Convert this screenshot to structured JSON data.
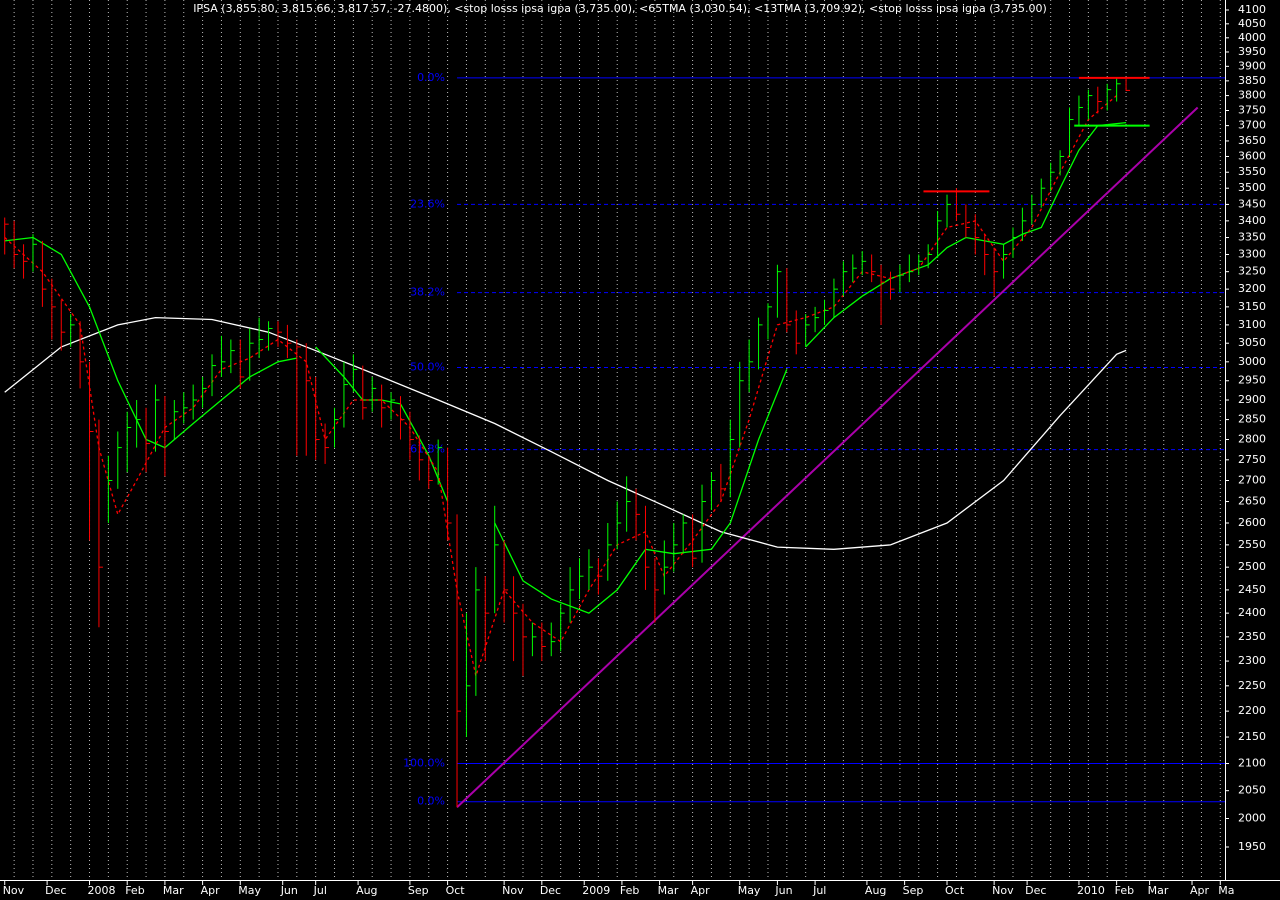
{
  "chart_data": {
    "type": "ohlc",
    "title": "IPSA (3,855.80, 3,815.66, 3,817.57, -27.4800), <stop losss ipsa igpa (3,735.00), <65TMA (3,030.54), <13TMA (3,709.92), <stop losss ipsa igpa (3,735.00)",
    "log_scale": true,
    "ylim": [
      1950,
      4100
    ],
    "yticks": [
      1950,
      2000,
      2050,
      2100,
      2150,
      2200,
      2250,
      2300,
      2350,
      2400,
      2450,
      2500,
      2550,
      2600,
      2650,
      2700,
      2750,
      2800,
      2850,
      2900,
      2950,
      3000,
      3050,
      3100,
      3150,
      3200,
      3250,
      3300,
      3350,
      3400,
      3450,
      3500,
      3550,
      3600,
      3650,
      3700,
      3750,
      3800,
      3850,
      3900,
      3950,
      4000,
      4050,
      4100
    ],
    "xlim": [
      -0.5,
      129.5
    ],
    "xticks": [
      {
        "value": 0,
        "label": "Nov"
      },
      {
        "value": 4.5,
        "label": "Dec"
      },
      {
        "value": 9,
        "label": "2008"
      },
      {
        "value": 13,
        "label": "Feb"
      },
      {
        "value": 17,
        "label": "Mar"
      },
      {
        "value": 21,
        "label": "Apr"
      },
      {
        "value": 25,
        "label": "May"
      },
      {
        "value": 29.5,
        "label": "Jun"
      },
      {
        "value": 33,
        "label": "Jul"
      },
      {
        "value": 37.5,
        "label": "Aug"
      },
      {
        "value": 43,
        "label": "Sep"
      },
      {
        "value": 47,
        "label": "Oct"
      },
      {
        "value": 53,
        "label": "Nov"
      },
      {
        "value": 57,
        "label": "Dec"
      },
      {
        "value": 61.5,
        "label": "2009"
      },
      {
        "value": 65.5,
        "label": "Feb"
      },
      {
        "value": 69.5,
        "label": "Mar"
      },
      {
        "value": 73,
        "label": "Apr"
      },
      {
        "value": 78,
        "label": "May"
      },
      {
        "value": 82,
        "label": "Jun"
      },
      {
        "value": 86,
        "label": "Jul"
      },
      {
        "value": 91.5,
        "label": "Aug"
      },
      {
        "value": 95.5,
        "label": "Sep"
      },
      {
        "value": 100,
        "label": "Oct"
      },
      {
        "value": 105,
        "label": "Nov"
      },
      {
        "value": 108.5,
        "label": "Dec"
      },
      {
        "value": 114,
        "label": "2010"
      },
      {
        "value": 118,
        "label": "Feb"
      },
      {
        "value": 121.5,
        "label": "Mar"
      },
      {
        "value": 126,
        "label": "Apr"
      },
      {
        "value": 129,
        "label": "Ma"
      }
    ],
    "up_color": "#00ff00",
    "down_color": "#ff0000",
    "bars": {
      "close": [
        3390,
        3300,
        3280,
        3330,
        3200,
        3150,
        3080,
        3100,
        3000,
        2820,
        2500,
        2700,
        2780,
        2830,
        2850,
        2790,
        2900,
        2820,
        2870,
        2880,
        2900,
        2930,
        2990,
        3000,
        3030,
        2960,
        3050,
        3060,
        3090,
        3080,
        3050,
        3040,
        2950,
        2800,
        2780,
        2850,
        2940,
        2980,
        2880,
        2930,
        2880,
        2900,
        2850,
        2800,
        2750,
        2700,
        2780,
        2600,
        2200,
        2250,
        2450,
        2400,
        2550,
        2450,
        2400,
        2350,
        2350,
        2330,
        2340,
        2400,
        2450,
        2480,
        2500,
        2480,
        2550,
        2600,
        2650,
        2620,
        2500,
        2450,
        2500,
        2550,
        2600,
        2520,
        2650,
        2700,
        2680,
        2800,
        2950,
        3000,
        3100,
        3150,
        3250,
        3100,
        3050,
        3100,
        3120,
        3140,
        3200,
        3250,
        3260,
        3280,
        3250,
        3220,
        3200,
        3240,
        3250,
        3280,
        3300,
        3400,
        3450,
        3420,
        3380,
        3350,
        3300,
        3250,
        3300,
        3350,
        3400,
        3450,
        3500,
        3550,
        3600,
        3720,
        3760,
        3800,
        3780,
        3820,
        3840,
        3817.57
      ],
      "high": [
        3410,
        3400,
        3330,
        3360,
        3340,
        3230,
        3170,
        3130,
        3110,
        3000,
        2850,
        2760,
        2820,
        2870,
        2900,
        2880,
        2940,
        2910,
        2900,
        2920,
        2940,
        2960,
        3020,
        3070,
        3060,
        3060,
        3090,
        3120,
        3110,
        3110,
        3100,
        3060,
        3050,
        2960,
        2840,
        2880,
        3000,
        3020,
        2990,
        2960,
        2940,
        2920,
        2910,
        2870,
        2810,
        2760,
        2800,
        2780,
        2620,
        2400,
        2500,
        2480,
        2640,
        2560,
        2480,
        2420,
        2380,
        2380,
        2380,
        2420,
        2500,
        2520,
        2540,
        2520,
        2600,
        2650,
        2710,
        2680,
        2640,
        2520,
        2560,
        2600,
        2620,
        2620,
        2690,
        2720,
        2740,
        2850,
        3000,
        3060,
        3120,
        3160,
        3270,
        3260,
        3140,
        3130,
        3150,
        3170,
        3230,
        3280,
        3300,
        3310,
        3300,
        3270,
        3250,
        3270,
        3300,
        3300,
        3330,
        3430,
        3480,
        3500,
        3450,
        3420,
        3360,
        3320,
        3330,
        3380,
        3440,
        3480,
        3530,
        3580,
        3620,
        3760,
        3800,
        3820,
        3830,
        3840,
        3860,
        3855.8
      ],
      "low": [
        3300,
        3260,
        3230,
        3250,
        3150,
        3060,
        3030,
        3040,
        2930,
        2560,
        2370,
        2600,
        2680,
        2720,
        2780,
        2720,
        2770,
        2710,
        2800,
        2840,
        2850,
        2880,
        2910,
        2960,
        2970,
        2930,
        2950,
        3010,
        3030,
        3040,
        3010,
        2760,
        2760,
        2750,
        2740,
        2780,
        2830,
        2920,
        2850,
        2870,
        2830,
        2850,
        2800,
        2750,
        2700,
        2680,
        2690,
        2560,
        2020,
        2150,
        2230,
        2300,
        2400,
        2380,
        2300,
        2270,
        2310,
        2300,
        2310,
        2320,
        2380,
        2430,
        2450,
        2440,
        2470,
        2540,
        2580,
        2560,
        2450,
        2380,
        2440,
        2490,
        2530,
        2500,
        2510,
        2630,
        2650,
        2660,
        2780,
        2920,
        2980,
        3060,
        3120,
        3080,
        3020,
        3040,
        3080,
        3100,
        3120,
        3180,
        3220,
        3240,
        3220,
        3100,
        3170,
        3190,
        3220,
        3240,
        3260,
        3290,
        3380,
        3400,
        3350,
        3300,
        3240,
        3180,
        3230,
        3290,
        3340,
        3390,
        3440,
        3490,
        3540,
        3600,
        3700,
        3720,
        3740,
        3750,
        3780,
        3815.66
      ]
    },
    "moving_averages": [
      {
        "name": "65TMA",
        "color": "#ffffff",
        "dash": false,
        "x": [
          0,
          6,
          12,
          16,
          22,
          28,
          34,
          40,
          46,
          52,
          58,
          64,
          70,
          76,
          82,
          88,
          94,
          100,
          106,
          112,
          118,
          119
        ],
        "values": [
          2920,
          3040,
          3100,
          3120,
          3115,
          3080,
          3020,
          2960,
          2900,
          2840,
          2770,
          2700,
          2640,
          2580,
          2545,
          2540,
          2550,
          2600,
          2700,
          2860,
          3020,
          3030.54
        ]
      },
      {
        "name": "13TMA",
        "color": "#00ff00",
        "dash": false,
        "x": [
          0,
          3,
          6,
          9,
          12,
          15,
          17,
          20,
          23,
          26,
          29,
          31,
          32,
          33,
          36,
          38,
          40,
          42,
          45,
          47,
          48,
          52,
          55,
          58,
          62,
          65,
          68,
          71,
          75,
          77,
          80,
          83,
          84,
          85,
          88,
          91,
          94,
          96,
          98,
          100,
          102,
          104,
          106,
          108,
          110,
          112,
          114,
          116,
          119
        ],
        "values": [
          3340,
          3350,
          3300,
          3150,
          2950,
          2800,
          2780,
          2840,
          2900,
          2960,
          3000,
          3010,
          null,
          3040,
          2960,
          2900,
          2900,
          2890,
          2760,
          2650,
          null,
          2600,
          2470,
          2430,
          2400,
          2450,
          2540,
          2530,
          2540,
          2600,
          2800,
          2980,
          null,
          3040,
          3120,
          3180,
          3230,
          3250,
          3270,
          3320,
          3350,
          3340,
          3330,
          3360,
          3380,
          3500,
          3620,
          3700,
          3709.92
        ]
      },
      {
        "color": "#ff0000",
        "dash": true,
        "x": [
          0,
          4,
          8,
          10,
          12,
          14,
          17,
          20,
          23,
          26,
          29,
          32,
          34,
          37,
          40,
          43,
          46,
          48,
          50,
          53,
          56,
          59,
          62,
          65,
          68,
          70,
          73,
          76,
          79,
          82,
          85,
          88,
          91,
          94,
          97,
          100,
          103,
          106,
          109,
          112,
          115,
          118
        ],
        "values": [
          3350,
          3250,
          3100,
          2780,
          2620,
          2700,
          2830,
          2880,
          2980,
          3010,
          3060,
          3000,
          2800,
          2900,
          2900,
          2830,
          2720,
          2450,
          2270,
          2450,
          2380,
          2340,
          2450,
          2550,
          2580,
          2480,
          2560,
          2650,
          2850,
          3100,
          3120,
          3150,
          3250,
          3230,
          3260,
          3380,
          3400,
          3280,
          3380,
          3550,
          3720,
          3800
        ]
      }
    ],
    "trendline": {
      "color": "#aa00aa",
      "x": [
        48,
        126.6
      ],
      "values": [
        2020,
        3760
      ]
    },
    "stop_lines": [
      {
        "color": "#ff0000",
        "x": [
          97.5,
          104.5
        ],
        "value": 3490
      },
      {
        "color": "#ff0000",
        "x": [
          114,
          121.5
        ],
        "value": 3860
      },
      {
        "color": "#00ff00",
        "x": [
          113.5,
          121.5
        ],
        "value": 3700
      }
    ],
    "fib_levels": [
      {
        "label": "0.0%",
        "value": 3860,
        "dashed": false
      },
      {
        "label": "23.6%",
        "value": 3450,
        "dashed": true
      },
      {
        "label": "38.2%",
        "value": 3190,
        "dashed": true
      },
      {
        "label": "50.0%",
        "value": 2985,
        "dashed": true
      },
      {
        "label": "61.8%",
        "value": 2775,
        "dashed": true
      },
      {
        "label": "100.0%",
        "value": 2100,
        "dashed": false
      },
      {
        "label": "0.0%",
        "value": 2030,
        "dashed": false
      }
    ],
    "fib_start": 48,
    "fib_color": "#0000ff"
  }
}
